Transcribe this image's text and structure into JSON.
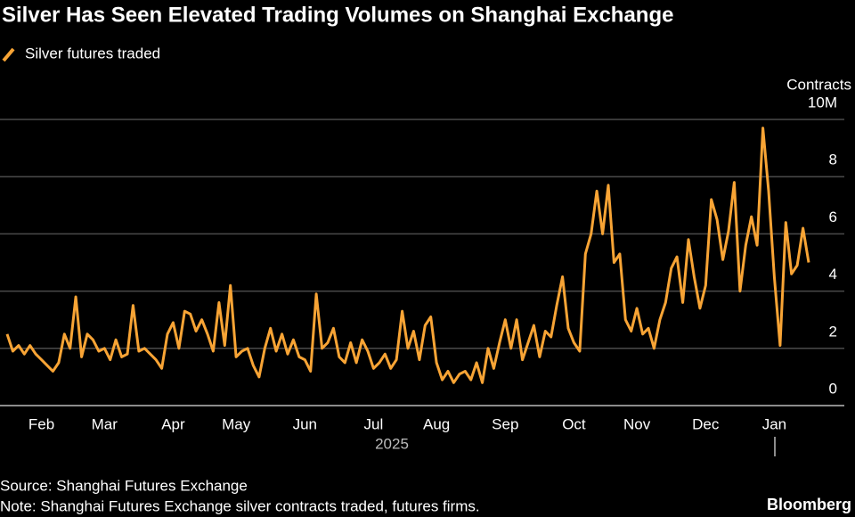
{
  "chart_data": {
    "type": "line",
    "title": "Silver Has Seen Elevated Trading Volumes on Shanghai Exchange",
    "y_label": "Contracts",
    "x_group_label": "2025",
    "source": "Source: Shanghai Futures Exchange",
    "note": "Note: Shanghai Futures Exchange silver contracts traded, futures firms.",
    "brand": "Bloomberg",
    "grid": true,
    "ylim": [
      0,
      10
    ],
    "yticks": [
      0,
      2,
      4,
      6,
      8,
      {
        "value": 10,
        "label": "10M"
      }
    ],
    "categories": [
      null,
      null,
      null,
      null,
      null,
      null,
      "Feb",
      null,
      null,
      null,
      null,
      null,
      null,
      null,
      null,
      null,
      null,
      "Mar",
      null,
      null,
      null,
      null,
      null,
      null,
      null,
      null,
      null,
      null,
      null,
      "Apr",
      null,
      null,
      null,
      null,
      null,
      null,
      null,
      null,
      null,
      null,
      "May",
      null,
      null,
      null,
      null,
      null,
      null,
      null,
      null,
      null,
      null,
      null,
      "Jun",
      null,
      null,
      null,
      null,
      null,
      null,
      null,
      null,
      null,
      null,
      null,
      "Jul",
      null,
      null,
      null,
      null,
      null,
      null,
      null,
      null,
      null,
      null,
      "Aug",
      null,
      null,
      null,
      null,
      null,
      null,
      null,
      null,
      null,
      null,
      null,
      "Sep",
      null,
      null,
      null,
      null,
      null,
      null,
      null,
      null,
      null,
      null,
      null,
      "Oct",
      null,
      null,
      null,
      null,
      null,
      null,
      null,
      null,
      null,
      null,
      "Nov",
      null,
      null,
      null,
      null,
      null,
      null,
      null,
      null,
      null,
      null,
      null,
      "Dec",
      null,
      null,
      null,
      null,
      null,
      null,
      null,
      null,
      null,
      null,
      null,
      "Jan",
      null,
      null,
      null,
      null,
      null,
      null
    ],
    "series": [
      {
        "name": "Silver futures traded",
        "color": "#f8a435",
        "values": [
          2.5,
          1.9,
          2.1,
          1.8,
          2.1,
          1.8,
          1.6,
          1.4,
          1.2,
          1.5,
          2.5,
          2.0,
          3.8,
          1.7,
          2.5,
          2.3,
          1.9,
          2.0,
          1.6,
          2.3,
          1.7,
          1.8,
          3.5,
          1.9,
          2.0,
          1.8,
          1.6,
          1.3,
          2.5,
          2.9,
          2.0,
          3.3,
          3.2,
          2.6,
          3.0,
          2.5,
          1.9,
          3.6,
          2.1,
          4.2,
          1.7,
          1.9,
          2.0,
          1.4,
          1.0,
          2.0,
          2.7,
          1.9,
          2.5,
          1.8,
          2.3,
          1.7,
          1.6,
          1.2,
          3.9,
          2.0,
          2.2,
          2.7,
          1.7,
          1.5,
          2.2,
          1.5,
          2.3,
          1.9,
          1.3,
          1.5,
          1.8,
          1.3,
          1.6,
          3.3,
          2.0,
          2.6,
          1.6,
          2.8,
          3.1,
          1.5,
          0.9,
          1.2,
          0.8,
          1.1,
          1.2,
          0.9,
          1.5,
          0.8,
          2.0,
          1.3,
          2.2,
          3.0,
          2.0,
          3.0,
          1.6,
          2.2,
          2.8,
          1.7,
          2.6,
          2.4,
          3.5,
          4.5,
          2.7,
          2.2,
          1.9,
          5.3,
          6.0,
          7.5,
          6.0,
          7.7,
          5.0,
          5.3,
          3.0,
          2.6,
          3.4,
          2.5,
          2.7,
          2.0,
          3.0,
          3.6,
          4.8,
          5.2,
          3.6,
          5.8,
          4.5,
          3.4,
          4.2,
          7.2,
          6.5,
          5.1,
          6.1,
          7.8,
          4.0,
          5.6,
          6.6,
          5.6,
          9.7,
          7.5,
          4.5,
          2.1,
          6.4,
          4.6,
          4.9,
          6.2,
          5.0
        ]
      }
    ]
  }
}
